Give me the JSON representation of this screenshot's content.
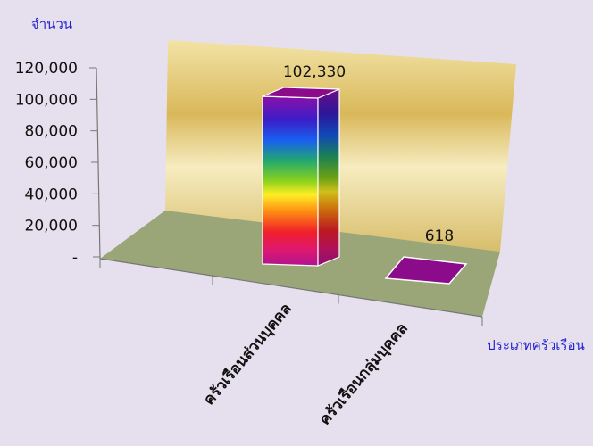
{
  "chart_data": {
    "type": "bar",
    "categories": [
      "ครัวเรือนส่วนบุคคล",
      "ครัวเรือนกลุ่มบุคคล"
    ],
    "values": [
      102330,
      618
    ],
    "data_labels": [
      "102,330",
      "618"
    ],
    "ylabel": "จำนวน",
    "xlabel": "ประเภทครัวเรือน",
    "ylim": [
      0,
      120000
    ],
    "yticks": [
      0,
      20000,
      40000,
      60000,
      80000,
      100000,
      120000
    ],
    "ytick_labels": [
      "-",
      "20,000",
      "40,000",
      "60,000",
      "80,000",
      "100,000",
      "120,000"
    ],
    "grid": false,
    "legend": "none",
    "style": "3d-column",
    "colors": {
      "background": "#e6e0ee",
      "back_wall": "#e8cf78",
      "floor": "#9aa678",
      "bar_top": "#8b0b8b",
      "bar_side": "#a00d9c"
    }
  }
}
